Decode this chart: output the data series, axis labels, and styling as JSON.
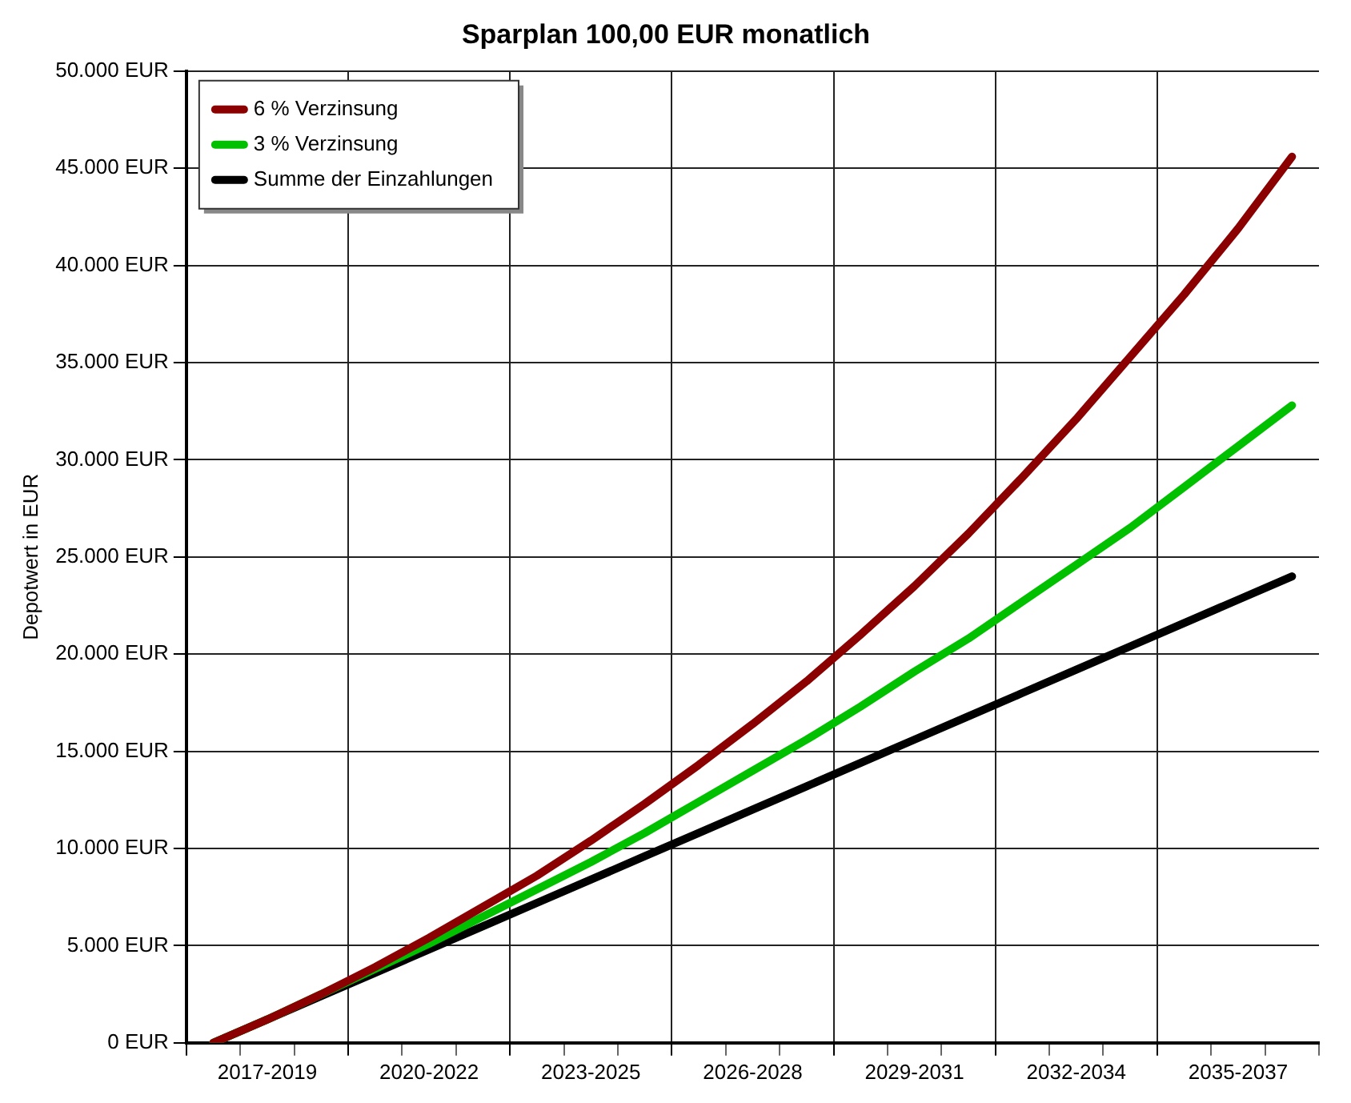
{
  "chart_data": {
    "type": "line",
    "title": "Sparplan 100,00 EUR monatlich",
    "ylabel": "Depotwert in EUR",
    "categories": [
      null,
      "2017-2019",
      null,
      null,
      "2020-2022",
      null,
      null,
      "2023-2025",
      null,
      null,
      "2026-2028",
      null,
      null,
      "2029-2031",
      null,
      null,
      "2032-2034",
      null,
      null,
      "2035-2037",
      null
    ],
    "series": [
      {
        "name": "6 % Verzinsung",
        "color": "#8b0000",
        "values": [
          0,
          1200,
          2500,
          3900,
          5400,
          7000,
          8600,
          10400,
          12300,
          14300,
          16400,
          18600,
          21000,
          23500,
          26200,
          29100,
          32100,
          35300,
          38500,
          41900,
          45600
        ]
      },
      {
        "name": "3 % Verzinsung",
        "color": "#00c000",
        "values": [
          0,
          1200,
          2500,
          3800,
          5100,
          6500,
          7900,
          9300,
          10800,
          12400,
          14000,
          15600,
          17300,
          19100,
          20800,
          22700,
          24600,
          26500,
          28600,
          30700,
          32800
        ]
      },
      {
        "name": "Summe der Einzahlungen",
        "color": "#000000",
        "values": [
          0,
          1200,
          2400,
          3600,
          4800,
          6000,
          7200,
          8400,
          9600,
          10800,
          12000,
          13200,
          14400,
          15600,
          16800,
          18000,
          19200,
          20400,
          21600,
          22800,
          24000
        ]
      }
    ],
    "ylim": [
      0,
      50000
    ],
    "yticks": [
      {
        "value": 0,
        "label": "0 EUR"
      },
      {
        "value": 5000,
        "label": "5.000 EUR"
      },
      {
        "value": 10000,
        "label": "10.000 EUR"
      },
      {
        "value": 15000,
        "label": "15.000 EUR"
      },
      {
        "value": 20000,
        "label": "20.000 EUR"
      },
      {
        "value": 25000,
        "label": "25.000 EUR"
      },
      {
        "value": 30000,
        "label": "30.000 EUR"
      },
      {
        "value": 35000,
        "label": "35.000 EUR"
      },
      {
        "value": 40000,
        "label": "40.000 EUR"
      },
      {
        "value": 45000,
        "label": "45.000 EUR"
      },
      {
        "value": 50000,
        "label": "50.000 EUR"
      }
    ],
    "grid": true,
    "legend": "top left",
    "marker": "none",
    "line_style": "solid"
  }
}
